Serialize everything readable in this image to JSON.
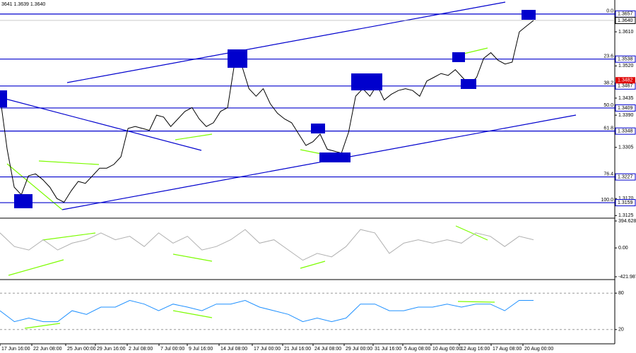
{
  "chart_data": [
    {
      "type": "line",
      "title": "3641 1.3639 1.3640",
      "color": "#000000",
      "values": [
        1.344,
        1.33,
        1.32,
        1.318,
        1.323,
        1.3235,
        1.322,
        1.32,
        1.317,
        1.316,
        1.319,
        1.3215,
        1.321,
        1.323,
        1.325,
        1.325,
        1.326,
        1.328,
        1.3355,
        1.336,
        1.3355,
        1.335,
        1.339,
        1.3385,
        1.336,
        1.338,
        1.34,
        1.341,
        1.338,
        1.336,
        1.337,
        1.34,
        1.341,
        1.353,
        1.352,
        1.346,
        1.344,
        1.346,
        1.342,
        1.3395,
        1.338,
        1.337,
        1.334,
        1.331,
        1.332,
        1.334,
        1.33,
        1.3295,
        1.329,
        1.3345,
        1.344,
        1.346,
        1.344,
        1.347,
        1.343,
        1.3445,
        1.3455,
        1.346,
        1.3455,
        1.344,
        1.348,
        1.349,
        1.35,
        1.3495,
        1.351,
        1.349,
        1.347,
        1.349,
        1.354,
        1.3555,
        1.3535,
        1.3525,
        1.353,
        1.361,
        1.3625,
        1.364
      ],
      "ylim": [
        1.312,
        1.3694
      ],
      "yticks": [
        {
          "value": 1.361,
          "label": "1.3610"
        },
        {
          "value": 1.352,
          "label": "1.3520"
        },
        1.3435,
        {
          "value": 1.339,
          "label": "1.3390"
        },
        1.3305,
        {
          "value": 1.317,
          "label": "1.3170"
        },
        1.3125
      ],
      "levels": [
        {
          "name": "0.0",
          "value": 1.3657
        },
        {
          "name": "23.6",
          "value": 1.3538
        },
        {
          "name": "38.2",
          "value": 1.3467
        },
        {
          "name": "50.0",
          "value": 1.3409
        },
        {
          "name": "61.8",
          "value": 1.3348
        },
        {
          "name": "76.4",
          "value": 1.3227
        },
        {
          "name": "100.0",
          "value": 1.3159
        }
      ],
      "level_color": "#0000cd",
      "last_price": {
        "value": 1.364,
        "label": "1.3640"
      },
      "alert_price": 1.3482,
      "xlim": [
        0,
        87
      ],
      "xticks": [
        {
          "value": 0,
          "label": "17 Jun 16:00"
        },
        {
          "value": 4.5,
          "label": "22 Jun 08:00"
        },
        {
          "value": 9.3,
          "label": "25 Jun 00:00"
        },
        {
          "value": 13.5,
          "label": "29 Jun 16:00"
        },
        {
          "value": 18,
          "label": "2 Jul 08:00"
        },
        {
          "value": 22.5,
          "label": "7 Jul 00:00"
        },
        {
          "value": 26.5,
          "label": "9 Jul 16:00"
        },
        {
          "value": 31,
          "label": "14 Jul 08:00"
        },
        {
          "value": 35.7,
          "label": "17 Jul 00:00"
        },
        {
          "value": 40,
          "label": "21 Jul 16:00"
        },
        {
          "value": 44.3,
          "label": "24 Jul 08:00"
        },
        {
          "value": 48.7,
          "label": "29 Jul 00:00"
        },
        {
          "value": 52.8,
          "label": "31 Jul 16:00"
        },
        {
          "value": 57,
          "label": "5 Aug 08:00"
        },
        {
          "value": 61,
          "label": "10 Aug 00:00"
        },
        {
          "value": 65,
          "label": "12 Aug 16:00"
        },
        {
          "value": 69.5,
          "label": "17 Aug 08:00"
        },
        {
          "value": 74,
          "label": "20 Aug 00:00"
        }
      ]
    },
    {
      "type": "line",
      "color": "#b0b0b0",
      "values": [
        220,
        20,
        -30,
        120,
        -30,
        70,
        120,
        220,
        120,
        170,
        20,
        220,
        70,
        170,
        -30,
        20,
        120,
        270,
        70,
        120,
        -30,
        -180,
        -80,
        -130,
        20,
        270,
        220,
        -80,
        70,
        120,
        70,
        120,
        70,
        220,
        170,
        20,
        170,
        120
      ],
      "ylim": [
        -421.9876,
        394.6289
      ],
      "yticks": [
        394.6289,
        {
          "value": 0,
          "label": "0.00"
        },
        -421.9876
      ]
    },
    {
      "type": "line",
      "color": "#1e90ff",
      "values": [
        51,
        33,
        39,
        33,
        33,
        51,
        45,
        57,
        57,
        68,
        62,
        51,
        62,
        57,
        51,
        62,
        62,
        68,
        57,
        51,
        45,
        33,
        39,
        33,
        39,
        62,
        62,
        51,
        51,
        57,
        57,
        62,
        57,
        62,
        62,
        51,
        68,
        68
      ],
      "ylim": [
        0,
        100
      ],
      "yticks": [
        80,
        20
      ]
    }
  ]
}
